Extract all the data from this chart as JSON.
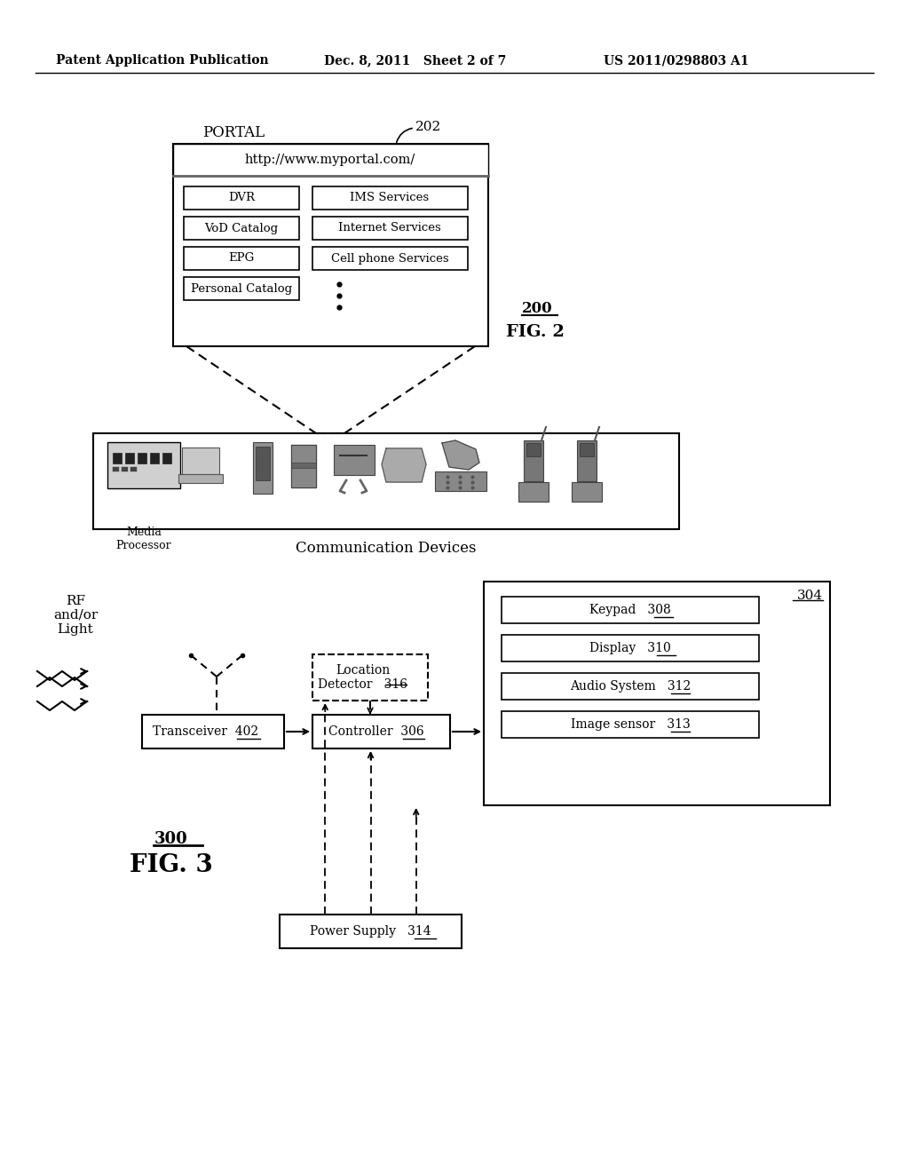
{
  "bg_color": "#ffffff",
  "header_left": "Patent Application Publication",
  "header_mid": "Dec. 8, 2011   Sheet 2 of 7",
  "header_right": "US 2011/0298803 A1",
  "fig2_label": "FIG. 2",
  "fig2_num": "200",
  "fig2_ref": "202",
  "portal_label": "PORTAL",
  "portal_url": "http://www.myportal.com/",
  "portal_buttons_left": [
    "DVR",
    "VoD Catalog",
    "EPG",
    "Personal Catalog"
  ],
  "portal_buttons_right": [
    "IMS Services",
    "Internet Services",
    "Cell phone Services"
  ],
  "comm_devices_label": "Communication Devices",
  "media_processor_label": "Media\nProcessor",
  "fig3_label": "FIG. 3",
  "fig3_num": "300",
  "transceiver_label": "Transceiver",
  "transceiver_num": "402",
  "controller_label": "Controller",
  "controller_num": "306",
  "location_detector_label": "Location\nDetector",
  "location_detector_num": "316",
  "keypad_label": "Keypad",
  "keypad_num": "308",
  "display_label": "Display",
  "display_num": "310",
  "audio_label": "Audio System",
  "audio_num": "312",
  "image_sensor_label": "Image sensor",
  "image_sensor_num": "313",
  "power_supply_label": "Power Supply",
  "power_supply_num": "314",
  "device_box_num": "304",
  "rf_label": "RF\nand/or\nLight"
}
